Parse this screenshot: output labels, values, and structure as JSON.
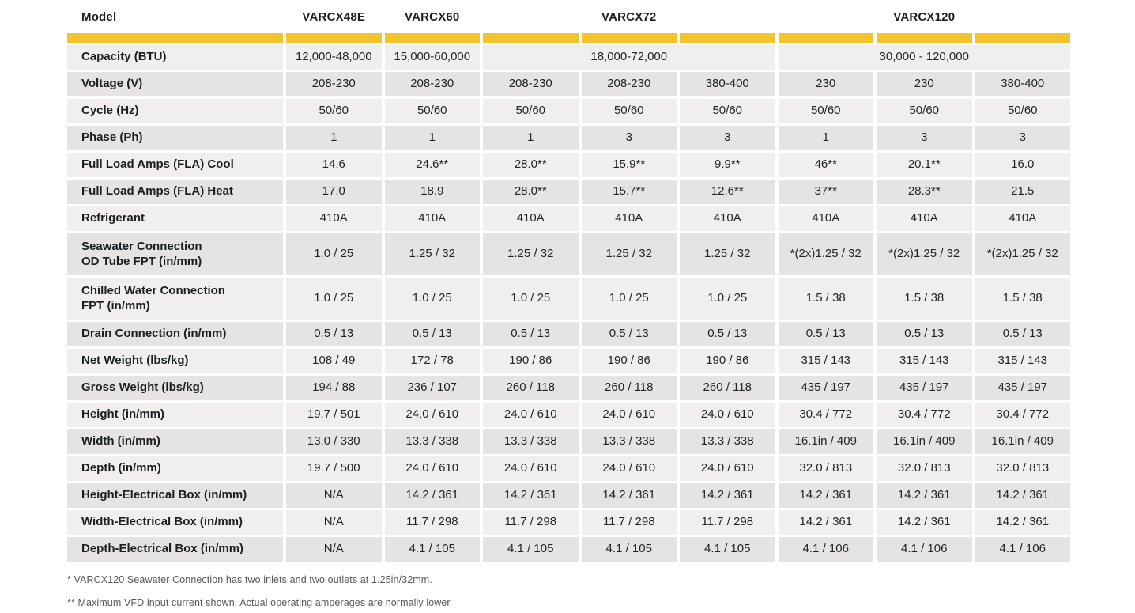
{
  "colors": {
    "accent": "#F5C32E",
    "row_light": "#F0EFED",
    "row_dark": "#E5E4E2",
    "text": "#232425",
    "footnote_text": "#56595C"
  },
  "table": {
    "header": {
      "label": "Model",
      "models": [
        {
          "name": "VARCX48E",
          "span": 1
        },
        {
          "name": "VARCX60",
          "span": 1
        },
        {
          "name": "VARCX72",
          "span": 3
        },
        {
          "name": "VARCX120",
          "span": 3
        }
      ]
    },
    "rows": [
      {
        "label": "Capacity (BTU)",
        "cells": [
          {
            "v": "12,000-48,000",
            "span": 1
          },
          {
            "v": "15,000-60,000",
            "span": 1
          },
          {
            "v": "18,000-72,000",
            "span": 3
          },
          {
            "v": "30,000 - 120,000",
            "span": 3
          }
        ]
      },
      {
        "label": "Voltage (V)",
        "cells": [
          {
            "v": "208-230"
          },
          {
            "v": "208-230"
          },
          {
            "v": "208-230"
          },
          {
            "v": "208-230"
          },
          {
            "v": "380-400"
          },
          {
            "v": "230"
          },
          {
            "v": "230"
          },
          {
            "v": "380-400"
          }
        ]
      },
      {
        "label": "Cycle (Hz)",
        "cells": [
          {
            "v": "50/60"
          },
          {
            "v": "50/60"
          },
          {
            "v": "50/60"
          },
          {
            "v": "50/60"
          },
          {
            "v": "50/60"
          },
          {
            "v": "50/60"
          },
          {
            "v": "50/60"
          },
          {
            "v": "50/60"
          }
        ]
      },
      {
        "label": "Phase (Ph)",
        "cells": [
          {
            "v": "1"
          },
          {
            "v": "1"
          },
          {
            "v": "1"
          },
          {
            "v": "3"
          },
          {
            "v": "3"
          },
          {
            "v": "1"
          },
          {
            "v": "3"
          },
          {
            "v": "3"
          }
        ]
      },
      {
        "label": "Full Load Amps (FLA) Cool",
        "cells": [
          {
            "v": "14.6"
          },
          {
            "v": "24.6**"
          },
          {
            "v": "28.0**"
          },
          {
            "v": "15.9**"
          },
          {
            "v": "9.9**"
          },
          {
            "v": "46**"
          },
          {
            "v": "20.1**"
          },
          {
            "v": "16.0"
          }
        ]
      },
      {
        "label": "Full Load Amps (FLA) Heat",
        "cells": [
          {
            "v": "17.0"
          },
          {
            "v": "18.9"
          },
          {
            "v": "28.0**"
          },
          {
            "v": "15.7**"
          },
          {
            "v": "12.6**"
          },
          {
            "v": "37**"
          },
          {
            "v": "28.3**"
          },
          {
            "v": "21.5"
          }
        ]
      },
      {
        "label": "Refrigerant",
        "cells": [
          {
            "v": "410A"
          },
          {
            "v": "410A"
          },
          {
            "v": "410A"
          },
          {
            "v": "410A"
          },
          {
            "v": "410A"
          },
          {
            "v": "410A"
          },
          {
            "v": "410A"
          },
          {
            "v": "410A"
          }
        ]
      },
      {
        "label": "Seawater Connection\nOD Tube FPT (in/mm)",
        "tall": true,
        "cells": [
          {
            "v": "1.0 / 25"
          },
          {
            "v": "1.25 / 32"
          },
          {
            "v": "1.25 / 32"
          },
          {
            "v": "1.25 / 32"
          },
          {
            "v": "1.25 / 32"
          },
          {
            "v": "*(2x)1.25 / 32"
          },
          {
            "v": "*(2x)1.25 / 32"
          },
          {
            "v": "*(2x)1.25 / 32"
          }
        ]
      },
      {
        "label": "Chilled Water Connection\nFPT (in/mm)",
        "tall": true,
        "cells": [
          {
            "v": "1.0 / 25"
          },
          {
            "v": "1.0 / 25"
          },
          {
            "v": "1.0 / 25"
          },
          {
            "v": "1.0 / 25"
          },
          {
            "v": "1.0 / 25"
          },
          {
            "v": "1.5 / 38"
          },
          {
            "v": "1.5 / 38"
          },
          {
            "v": "1.5 / 38"
          }
        ]
      },
      {
        "label": "Drain Connection (in/mm)",
        "cells": [
          {
            "v": "0.5 / 13"
          },
          {
            "v": "0.5 / 13"
          },
          {
            "v": "0.5 / 13"
          },
          {
            "v": "0.5 / 13"
          },
          {
            "v": "0.5 / 13"
          },
          {
            "v": "0.5 / 13"
          },
          {
            "v": "0.5 / 13"
          },
          {
            "v": "0.5 / 13"
          }
        ]
      },
      {
        "label": "Net Weight (lbs/kg)",
        "cells": [
          {
            "v": "108 / 49"
          },
          {
            "v": "172 / 78"
          },
          {
            "v": "190 / 86"
          },
          {
            "v": "190 / 86"
          },
          {
            "v": "190 / 86"
          },
          {
            "v": "315 / 143"
          },
          {
            "v": "315 / 143"
          },
          {
            "v": "315 / 143"
          }
        ]
      },
      {
        "label": "Gross Weight (lbs/kg)",
        "cells": [
          {
            "v": "194 / 88"
          },
          {
            "v": "236 / 107"
          },
          {
            "v": "260 / 118"
          },
          {
            "v": "260 / 118"
          },
          {
            "v": "260 / 118"
          },
          {
            "v": "435 / 197"
          },
          {
            "v": "435 / 197"
          },
          {
            "v": "435 / 197"
          }
        ]
      },
      {
        "label": "Height (in/mm)",
        "cells": [
          {
            "v": "19.7 / 501"
          },
          {
            "v": "24.0 / 610"
          },
          {
            "v": "24.0 / 610"
          },
          {
            "v": "24.0 / 610"
          },
          {
            "v": "24.0 / 610"
          },
          {
            "v": "30.4 / 772"
          },
          {
            "v": "30.4 / 772"
          },
          {
            "v": "30.4 / 772"
          }
        ]
      },
      {
        "label": "Width (in/mm)",
        "cells": [
          {
            "v": "13.0 / 330"
          },
          {
            "v": "13.3 / 338"
          },
          {
            "v": "13.3 / 338"
          },
          {
            "v": "13.3 / 338"
          },
          {
            "v": "13.3 / 338"
          },
          {
            "v": "16.1in / 409"
          },
          {
            "v": "16.1in / 409"
          },
          {
            "v": "16.1in / 409"
          }
        ]
      },
      {
        "label": "Depth (in/mm)",
        "cells": [
          {
            "v": "19.7 / 500"
          },
          {
            "v": "24.0 / 610"
          },
          {
            "v": "24.0 / 610"
          },
          {
            "v": "24.0 / 610"
          },
          {
            "v": "24.0 / 610"
          },
          {
            "v": "32.0 / 813"
          },
          {
            "v": "32.0 / 813"
          },
          {
            "v": "32.0 / 813"
          }
        ]
      },
      {
        "label": "Height-Electrical Box (in/mm)",
        "cells": [
          {
            "v": "N/A"
          },
          {
            "v": "14.2 / 361"
          },
          {
            "v": "14.2 / 361"
          },
          {
            "v": "14.2 / 361"
          },
          {
            "v": "14.2 / 361"
          },
          {
            "v": "14.2 / 361"
          },
          {
            "v": "14.2 / 361"
          },
          {
            "v": "14.2 / 361"
          }
        ]
      },
      {
        "label": "Width-Electrical Box (in/mm)",
        "cells": [
          {
            "v": "N/A"
          },
          {
            "v": "11.7 / 298"
          },
          {
            "v": "11.7 / 298"
          },
          {
            "v": "11.7 / 298"
          },
          {
            "v": "11.7 / 298"
          },
          {
            "v": "14.2 / 361"
          },
          {
            "v": "14.2 / 361"
          },
          {
            "v": "14.2 / 361"
          }
        ]
      },
      {
        "label": "Depth-Electrical Box (in/mm)",
        "cells": [
          {
            "v": "N/A"
          },
          {
            "v": "4.1 / 105"
          },
          {
            "v": "4.1 / 105"
          },
          {
            "v": "4.1 / 105"
          },
          {
            "v": "4.1 / 105"
          },
          {
            "v": "4.1 / 106"
          },
          {
            "v": "4.1 / 106"
          },
          {
            "v": "4.1 / 106"
          }
        ]
      }
    ]
  },
  "footnotes": [
    "* VARCX120 Seawater Connection has two inlets and two outlets at 1.25in/32mm.",
    "** Maximum VFD input current shown. Actual operating amperages are normally lower"
  ]
}
